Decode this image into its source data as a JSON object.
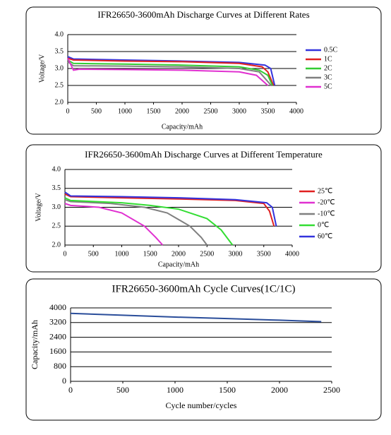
{
  "chart_data": [
    {
      "type": "line",
      "title": "IFR26650-3600mAh Discharge Curves at Different Rates",
      "y_label": "Voltage/V",
      "x_label": "Capacity/mAh",
      "xlim": [
        0,
        4000
      ],
      "xticks": [
        0,
        500,
        1000,
        1500,
        2000,
        2500,
        3000,
        3500,
        4000
      ],
      "ylim": [
        2,
        4
      ],
      "yticks": [
        {
          "value": 2,
          "label": "2.0"
        },
        {
          "value": 2.5,
          "label": "2.5"
        },
        {
          "value": 3,
          "label": "3.0"
        },
        {
          "value": 3.5,
          "label": "3.5"
        },
        {
          "value": 4,
          "label": "4.0"
        }
      ],
      "grid": true,
      "legend": "right",
      "series": [
        {
          "name": "0.5C",
          "color": "#3333dd",
          "x": [
            0,
            100,
            1000,
            2000,
            3000,
            3450,
            3550,
            3620
          ],
          "values": [
            3.35,
            3.28,
            3.25,
            3.22,
            3.18,
            3.1,
            3.0,
            2.5
          ]
        },
        {
          "name": "1C",
          "color": "#e02020",
          "x": [
            0,
            100,
            1000,
            2000,
            3000,
            3400,
            3500,
            3600
          ],
          "values": [
            3.3,
            3.25,
            3.22,
            3.2,
            3.15,
            3.05,
            2.9,
            2.5
          ]
        },
        {
          "name": "2C",
          "color": "#33cc33",
          "x": [
            0,
            100,
            1000,
            2000,
            3000,
            3350,
            3500,
            3580
          ],
          "values": [
            3.25,
            3.15,
            3.13,
            3.1,
            3.05,
            2.95,
            2.8,
            2.5
          ]
        },
        {
          "name": "3C",
          "color": "#808080",
          "x": [
            0,
            100,
            1000,
            2000,
            3000,
            3350,
            3560
          ],
          "values": [
            3.2,
            3.08,
            3.07,
            3.05,
            3.0,
            2.9,
            2.5
          ]
        },
        {
          "name": "5C",
          "color": "#e030d0",
          "x": [
            0,
            100,
            200,
            1000,
            2000,
            3000,
            3300,
            3500
          ],
          "values": [
            3.3,
            2.95,
            2.98,
            2.97,
            2.95,
            2.9,
            2.8,
            2.5
          ]
        }
      ]
    },
    {
      "type": "line",
      "title": "IFR26650-3600mAh Discharge Curves at Different Temperature",
      "y_label": "Voltage/V",
      "x_label": "Capacity/mAh",
      "xlim": [
        0,
        4000
      ],
      "xticks": [
        0,
        500,
        1000,
        1500,
        2000,
        2500,
        3000,
        3500,
        4000
      ],
      "ylim": [
        2,
        4
      ],
      "yticks": [
        {
          "value": 2,
          "label": "2.0"
        },
        {
          "value": 2.5,
          "label": "2.5"
        },
        {
          "value": 3,
          "label": "3.0"
        },
        {
          "value": 3.5,
          "label": "3.5"
        },
        {
          "value": 4,
          "label": "4.0"
        }
      ],
      "grid": true,
      "legend": "right",
      "series": [
        {
          "name": "25℃",
          "color": "#e02020",
          "x": [
            0,
            100,
            1000,
            2000,
            3000,
            3500,
            3600,
            3680
          ],
          "values": [
            3.35,
            3.28,
            3.25,
            3.22,
            3.18,
            3.1,
            2.9,
            2.5
          ]
        },
        {
          "name": "-20℃",
          "color": "#e030d0",
          "x": [
            0,
            100,
            600,
            1000,
            1400,
            1600,
            1720
          ],
          "values": [
            3.1,
            3.05,
            3.0,
            2.85,
            2.5,
            2.2,
            2.0
          ]
        },
        {
          "name": "-10℃",
          "color": "#808080",
          "x": [
            0,
            100,
            800,
            1400,
            1800,
            2200,
            2400,
            2500
          ],
          "values": [
            3.2,
            3.15,
            3.1,
            3.0,
            2.85,
            2.5,
            2.2,
            2.0
          ]
        },
        {
          "name": "0℃",
          "color": "#33dd33",
          "x": [
            0,
            100,
            1000,
            1500,
            2000,
            2500,
            2750,
            2950
          ],
          "values": [
            3.25,
            3.18,
            3.12,
            3.05,
            2.95,
            2.7,
            2.4,
            2.0
          ]
        },
        {
          "name": "60℃",
          "color": "#3333dd",
          "x": [
            0,
            100,
            1000,
            2000,
            3000,
            3550,
            3650,
            3720
          ],
          "values": [
            3.4,
            3.3,
            3.28,
            3.25,
            3.2,
            3.12,
            3.0,
            2.5
          ]
        }
      ]
    },
    {
      "type": "line",
      "title": "IFR26650-3600mAh  Cycle Curves(1C/1C)",
      "y_label": "Capacity/mAh",
      "x_label": "Cycle number/cycles",
      "xlim": [
        0,
        2500
      ],
      "xticks": [
        0,
        500,
        1000,
        1500,
        2000,
        2500
      ],
      "ylim": [
        0,
        4000
      ],
      "yticks": [
        0,
        800,
        1600,
        2400,
        3200,
        4000
      ],
      "grid": true,
      "series": [
        {
          "color": "#2a4d9a",
          "x": [
            0,
            500,
            1000,
            1500,
            2000,
            2400
          ],
          "values": [
            3700,
            3600,
            3500,
            3420,
            3330,
            3250
          ]
        }
      ]
    }
  ]
}
